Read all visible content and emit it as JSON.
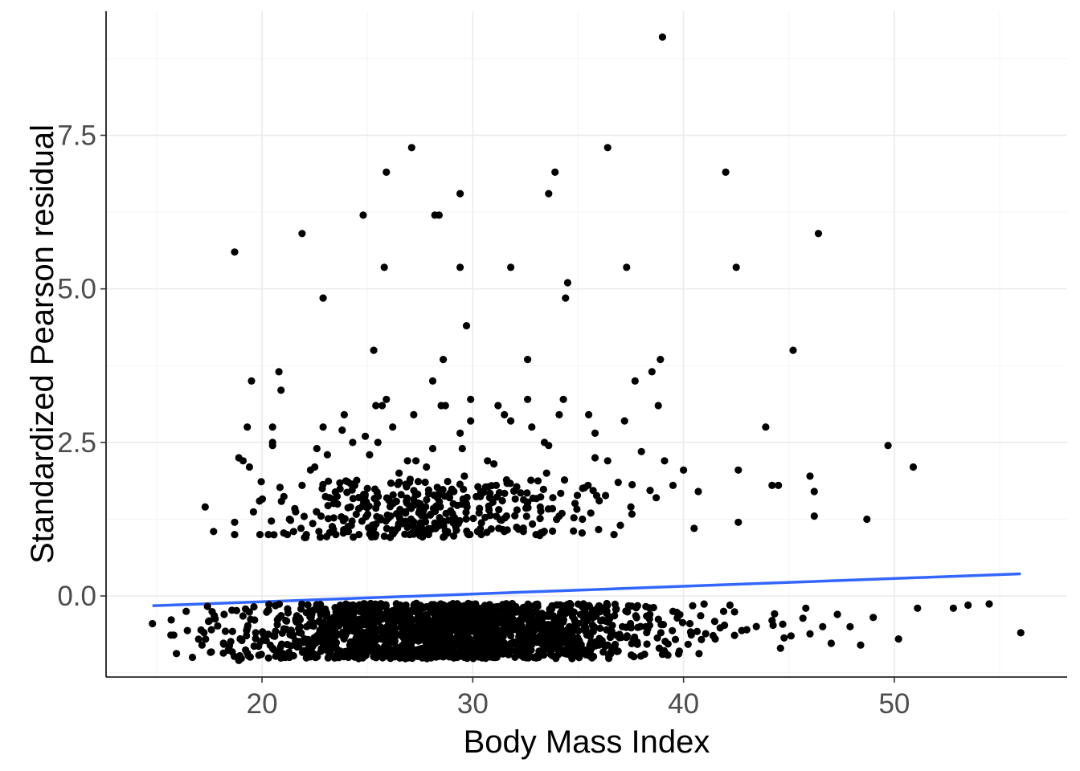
{
  "chart_data": {
    "type": "scatter",
    "title": "",
    "xlabel": "Body Mass Index",
    "ylabel": "Standardized Pearson residual",
    "xlim": [
      12.6,
      58.2
    ],
    "ylim": [
      -1.32,
      9.52
    ],
    "x_ticks": [
      20,
      30,
      40,
      50
    ],
    "x_tick_labels": [
      "20",
      "30",
      "40",
      "50"
    ],
    "y_ticks": [
      0,
      2.5,
      5,
      7.5
    ],
    "y_tick_labels": [
      "0.0",
      "2.5",
      "5.0",
      "7.5"
    ],
    "grid": true,
    "colors": {
      "points": "#000000",
      "trend": "#3366ff",
      "grid": "#ebebeb"
    },
    "trend_line": {
      "x": [
        14.8,
        56
      ],
      "y": [
        -0.16,
        0.36
      ]
    },
    "series": [
      {
        "points": [
          [
            39,
            9.1
          ],
          [
            27.1,
            7.3
          ],
          [
            36.4,
            7.3
          ],
          [
            25.9,
            6.9
          ],
          [
            33.9,
            6.9
          ],
          [
            42,
            6.9
          ],
          [
            29.4,
            6.55
          ],
          [
            33.6,
            6.55
          ],
          [
            24.8,
            6.2
          ],
          [
            28.2,
            6.2
          ],
          [
            28.4,
            6.2
          ],
          [
            18.7,
            5.6
          ],
          [
            21.9,
            5.9
          ],
          [
            46.4,
            5.9
          ],
          [
            25.8,
            5.35
          ],
          [
            29.4,
            5.35
          ],
          [
            31.8,
            5.35
          ],
          [
            37.3,
            5.35
          ],
          [
            42.5,
            5.35
          ],
          [
            22.9,
            4.85
          ],
          [
            34.5,
            5.1
          ],
          [
            34.4,
            4.85
          ],
          [
            29.7,
            4.4
          ],
          [
            25.3,
            4.0
          ],
          [
            45.2,
            4.0
          ],
          [
            28.6,
            3.85
          ],
          [
            32.6,
            3.85
          ],
          [
            38.9,
            3.85
          ],
          [
            20.8,
            3.65
          ],
          [
            38.5,
            3.65
          ],
          [
            19.5,
            3.5
          ],
          [
            28.1,
            3.5
          ],
          [
            37.7,
            3.5
          ],
          [
            20.9,
            3.35
          ],
          [
            25.9,
            3.2
          ],
          [
            29.9,
            3.2
          ],
          [
            32.6,
            3.2
          ],
          [
            34.3,
            3.2
          ],
          [
            25.4,
            3.1
          ],
          [
            25.7,
            3.1
          ],
          [
            28.5,
            3.1
          ],
          [
            28.7,
            3.1
          ],
          [
            31.2,
            3.1
          ],
          [
            38.8,
            3.1
          ],
          [
            27.2,
            2.95
          ],
          [
            31.5,
            2.95
          ],
          [
            34.1,
            2.95
          ],
          [
            35.5,
            2.95
          ],
          [
            23.9,
            2.95
          ],
          [
            29.9,
            2.85
          ],
          [
            31.8,
            2.85
          ],
          [
            37.2,
            2.85
          ],
          [
            19.3,
            2.75
          ],
          [
            20.5,
            2.75
          ],
          [
            22.9,
            2.75
          ],
          [
            26.2,
            2.75
          ],
          [
            32.8,
            2.75
          ],
          [
            43.9,
            2.75
          ],
          [
            23.8,
            2.7
          ],
          [
            29.4,
            2.65
          ],
          [
            35.8,
            2.65
          ],
          [
            24.9,
            2.6
          ],
          [
            20.5,
            2.5
          ],
          [
            20.5,
            2.45
          ],
          [
            24.3,
            2.5
          ],
          [
            25.5,
            2.5
          ],
          [
            33.4,
            2.5
          ],
          [
            33.6,
            2.45
          ],
          [
            29.5,
            2.4
          ],
          [
            22.6,
            2.4
          ],
          [
            28.1,
            2.4
          ],
          [
            49.7,
            2.45
          ],
          [
            18.9,
            2.25
          ],
          [
            19.1,
            2.2
          ],
          [
            19.4,
            2.1
          ],
          [
            23.1,
            2.3
          ],
          [
            25.1,
            2.3
          ],
          [
            26.9,
            2.2
          ],
          [
            27.3,
            2.2
          ],
          [
            30.7,
            2.2
          ],
          [
            31.0,
            2.15
          ],
          [
            35.8,
            2.25
          ],
          [
            36.4,
            2.2
          ],
          [
            39.1,
            2.2
          ],
          [
            38.0,
            2.35
          ],
          [
            22.5,
            2.1
          ],
          [
            27.8,
            2.1
          ],
          [
            50.9,
            2.1
          ],
          [
            40,
            2.05
          ],
          [
            42.6,
            2.05
          ],
          [
            46.0,
            1.95
          ],
          [
            22.3,
            2.05
          ],
          [
            26.5,
            2.0
          ],
          [
            29.6,
            1.95
          ],
          [
            33.5,
            2.0
          ],
          [
            21.9,
            1.8
          ],
          [
            24.4,
            1.8
          ],
          [
            27.0,
            1.85
          ],
          [
            36.9,
            1.85
          ],
          [
            39.5,
            1.8
          ],
          [
            44.2,
            1.8
          ],
          [
            44.5,
            1.8
          ],
          [
            40.7,
            1.7
          ],
          [
            46.2,
            1.7
          ],
          [
            17.3,
            1.45
          ],
          [
            18.7,
            1.2
          ],
          [
            18.7,
            1.0
          ],
          [
            17.7,
            1.05
          ],
          [
            19.9,
            1.0
          ],
          [
            20.3,
            1.0
          ],
          [
            21.2,
            1.0
          ],
          [
            21.5,
            1.05
          ],
          [
            22.1,
            1.0
          ],
          [
            22.7,
            1.05
          ],
          [
            23.5,
            1.0
          ],
          [
            24.1,
            1.05
          ],
          [
            24.6,
            1.0
          ],
          [
            25.4,
            1.0
          ],
          [
            26.3,
            1.05
          ],
          [
            27.0,
            1.0
          ],
          [
            27.9,
            1.0
          ],
          [
            28.8,
            1.05
          ],
          [
            29.8,
            1.0
          ],
          [
            30.4,
            1.0
          ],
          [
            31.5,
            1.05
          ],
          [
            32.4,
            1.05
          ],
          [
            33.0,
            1.0
          ],
          [
            36.7,
            1.0
          ],
          [
            42.6,
            1.2
          ],
          [
            40.5,
            1.1
          ],
          [
            46.2,
            1.3
          ],
          [
            48.7,
            1.25
          ],
          [
            21.3,
            1.25
          ],
          [
            22.8,
            1.3
          ],
          [
            24.2,
            1.45
          ],
          [
            26.1,
            1.3
          ],
          [
            27.5,
            1.5
          ],
          [
            28.9,
            1.6
          ],
          [
            30.3,
            1.35
          ],
          [
            31.4,
            1.55
          ],
          [
            33.2,
            1.45
          ],
          [
            34.1,
            1.3
          ],
          [
            35.2,
            1.25
          ],
          [
            36.0,
            1.55
          ],
          [
            37.5,
            1.45
          ],
          [
            38.7,
            1.6
          ],
          [
            23.2,
            1.6
          ],
          [
            25.0,
            1.75
          ],
          [
            26.6,
            1.65
          ],
          [
            28.3,
            1.45
          ],
          [
            29.1,
            1.7
          ],
          [
            30.8,
            1.6
          ],
          [
            32.1,
            1.4
          ],
          [
            33.8,
            1.6
          ],
          [
            35.6,
            1.35
          ],
          [
            37.0,
            1.15
          ],
          [
            14.8,
            -0.45
          ],
          [
            16.7,
            -1.0
          ],
          [
            18.9,
            -1.05
          ],
          [
            20.5,
            -0.85
          ],
          [
            21.3,
            -1.0
          ],
          [
            22.8,
            -0.9
          ],
          [
            24.1,
            -1.0
          ],
          [
            25.5,
            -0.95
          ],
          [
            26.9,
            -1.0
          ],
          [
            28.2,
            -0.95
          ],
          [
            29.6,
            -1.0
          ],
          [
            30.9,
            -0.95
          ],
          [
            32.3,
            -0.9
          ],
          [
            33.7,
            -0.95
          ],
          [
            35.0,
            -0.85
          ],
          [
            36.4,
            -0.8
          ],
          [
            37.8,
            -0.75
          ],
          [
            39.0,
            -0.95
          ],
          [
            39.8,
            -0.9
          ],
          [
            41.5,
            -0.7
          ],
          [
            43.0,
            -0.55
          ],
          [
            44.6,
            -0.85
          ],
          [
            46.6,
            -0.5
          ],
          [
            48.4,
            -0.8
          ],
          [
            50.2,
            -0.7
          ],
          [
            56.0,
            -0.6
          ],
          [
            52.8,
            -0.2
          ],
          [
            53.5,
            -0.15
          ],
          [
            54.5,
            -0.13
          ],
          [
            51.1,
            -0.2
          ],
          [
            49.0,
            -0.35
          ],
          [
            47.3,
            -0.3
          ],
          [
            45.8,
            -0.2
          ],
          [
            42.2,
            -0.15
          ],
          [
            39.5,
            -0.25
          ],
          [
            16.4,
            -0.25
          ],
          [
            17.6,
            -0.55
          ],
          [
            18.2,
            -0.3
          ],
          [
            19.7,
            -0.6
          ],
          [
            21.8,
            -0.5
          ],
          [
            23.4,
            -0.6
          ],
          [
            24.7,
            -0.4
          ],
          [
            26.1,
            -0.55
          ],
          [
            27.4,
            -0.35
          ],
          [
            28.9,
            -0.5
          ],
          [
            30.2,
            -0.3
          ],
          [
            31.7,
            -0.55
          ],
          [
            33.0,
            -0.4
          ],
          [
            34.4,
            -0.6
          ],
          [
            35.7,
            -0.35
          ],
          [
            37.1,
            -0.5
          ],
          [
            38.4,
            -0.3
          ],
          [
            40.3,
            -0.45
          ],
          [
            41.9,
            -0.25
          ],
          [
            44.2,
            -0.4
          ],
          [
            45.1,
            -0.65
          ],
          [
            47.9,
            -0.5
          ]
        ]
      }
    ]
  }
}
